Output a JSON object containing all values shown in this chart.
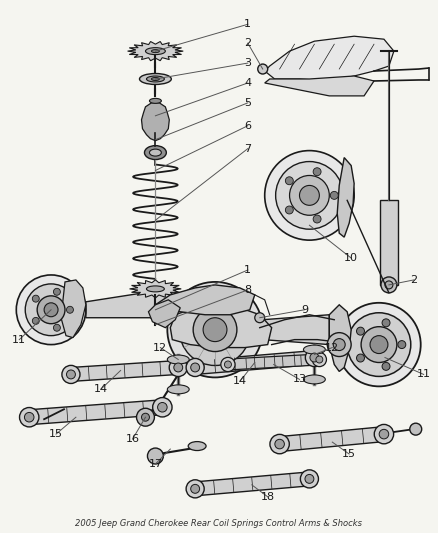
{
  "title": "2005 Jeep Grand Cherokee Rear Coil Springs Control Arms & Shocks",
  "background_color": "#f5f5f0",
  "line_color": "#1a1a1a",
  "label_color": "#1a1a1a",
  "figsize": [
    4.38,
    5.33
  ],
  "dpi": 100
}
